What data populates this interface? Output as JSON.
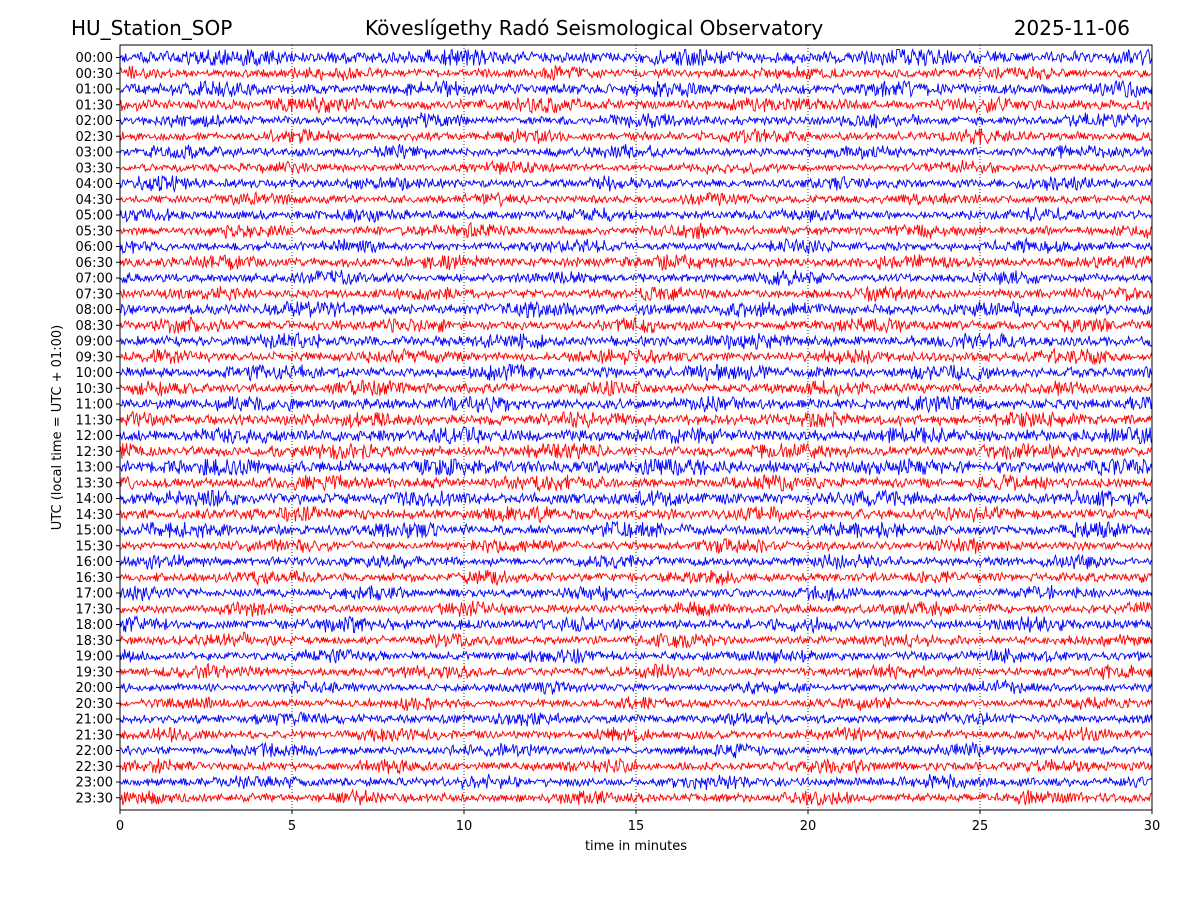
{
  "header": {
    "station": "HU_Station_SOP",
    "title": "Köveslígethy Radó Seismological Observatory",
    "date": "2025-11-06"
  },
  "chart_data": {
    "type": "line",
    "title": "Köveslígethy Radó Seismological Observatory",
    "xlabel": "time in minutes",
    "ylabel": "UTC (local time = UTC + 01:00)",
    "xlim": [
      0,
      30
    ],
    "x_ticks": [
      "0",
      "5",
      "10",
      "15",
      "20",
      "25",
      "30"
    ],
    "grid": "vertical dotted",
    "colors": [
      "#0000ff",
      "#ff0000"
    ],
    "series": [
      {
        "label": "00:00",
        "amplitude": 1.4
      },
      {
        "label": "00:30",
        "amplitude": 1.0
      },
      {
        "label": "01:00",
        "amplitude": 1.2
      },
      {
        "label": "01:30",
        "amplitude": 1.2
      },
      {
        "label": "02:00",
        "amplitude": 1.0
      },
      {
        "label": "02:30",
        "amplitude": 1.0
      },
      {
        "label": "03:00",
        "amplitude": 1.0
      },
      {
        "label": "03:30",
        "amplitude": 0.9
      },
      {
        "label": "04:00",
        "amplitude": 1.0
      },
      {
        "label": "04:30",
        "amplitude": 0.9
      },
      {
        "label": "05:00",
        "amplitude": 1.0
      },
      {
        "label": "05:30",
        "amplitude": 1.0
      },
      {
        "label": "06:00",
        "amplitude": 1.0
      },
      {
        "label": "06:30",
        "amplitude": 1.1
      },
      {
        "label": "07:00",
        "amplitude": 1.0
      },
      {
        "label": "07:30",
        "amplitude": 1.0
      },
      {
        "label": "08:00",
        "amplitude": 1.2
      },
      {
        "label": "08:30",
        "amplitude": 1.1
      },
      {
        "label": "09:00",
        "amplitude": 1.2
      },
      {
        "label": "09:30",
        "amplitude": 1.1
      },
      {
        "label": "10:00",
        "amplitude": 1.2
      },
      {
        "label": "10:30",
        "amplitude": 1.1
      },
      {
        "label": "11:00",
        "amplitude": 1.2
      },
      {
        "label": "11:30",
        "amplitude": 1.2
      },
      {
        "label": "12:00",
        "amplitude": 1.3
      },
      {
        "label": "12:30",
        "amplitude": 1.2
      },
      {
        "label": "13:00",
        "amplitude": 1.4
      },
      {
        "label": "13:30",
        "amplitude": 1.2
      },
      {
        "label": "14:00",
        "amplitude": 1.3
      },
      {
        "label": "14:30",
        "amplitude": 1.2
      },
      {
        "label": "15:00",
        "amplitude": 1.2
      },
      {
        "label": "15:30",
        "amplitude": 1.0
      },
      {
        "label": "16:00",
        "amplitude": 1.0
      },
      {
        "label": "16:30",
        "amplitude": 1.0
      },
      {
        "label": "17:00",
        "amplitude": 1.0
      },
      {
        "label": "17:30",
        "amplitude": 1.0
      },
      {
        "label": "18:00",
        "amplitude": 1.1
      },
      {
        "label": "18:30",
        "amplitude": 1.0
      },
      {
        "label": "19:00",
        "amplitude": 1.0
      },
      {
        "label": "19:30",
        "amplitude": 1.0
      },
      {
        "label": "20:00",
        "amplitude": 0.9
      },
      {
        "label": "20:30",
        "amplitude": 0.9
      },
      {
        "label": "21:00",
        "amplitude": 1.0
      },
      {
        "label": "21:30",
        "amplitude": 1.0
      },
      {
        "label": "22:00",
        "amplitude": 1.0
      },
      {
        "label": "22:30",
        "amplitude": 1.0
      },
      {
        "label": "23:00",
        "amplitude": 1.0
      },
      {
        "label": "23:30",
        "amplitude": 1.0
      }
    ]
  }
}
